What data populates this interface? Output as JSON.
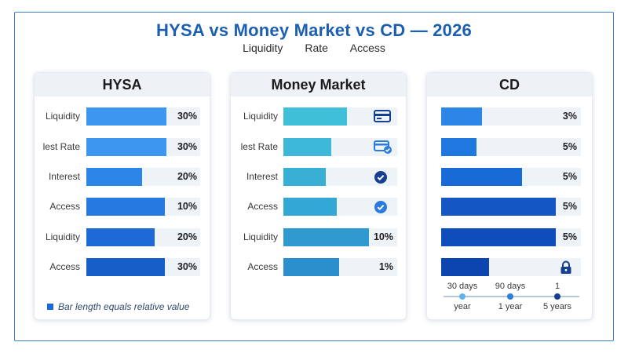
{
  "title": "HYSA vs Money Market vs CD — 2026",
  "subtitle": [
    "Liquidity",
    "Rate",
    "Access"
  ],
  "legend_text": "Bar length equals relative value",
  "colors": {
    "title": "#1c5fb0",
    "hysa": [
      "#3d97f0",
      "#3d97f0",
      "#2b86e8",
      "#2579e0",
      "#1d6ad6",
      "#175ec8"
    ],
    "money_market": [
      "#40c0d8",
      "#3db8d8",
      "#38b0d6",
      "#33a8d4",
      "#2e9ad0",
      "#2a8fcc"
    ],
    "cd": [
      "#2b86e8",
      "#1f78e0",
      "#186ad6",
      "#1356c4",
      "#0f4cbc",
      "#0d45b0"
    ]
  },
  "timeline": {
    "top_labels": [
      "30 days",
      "90 days",
      "1"
    ],
    "bottom_labels": [
      "year",
      "1 year",
      "5 years"
    ]
  },
  "chart_data": [
    {
      "type": "bar",
      "title": "HYSA",
      "categories": [
        "Liquidity",
        "lest Rate",
        "Interest",
        "Access",
        "Liquidity",
        "Access"
      ],
      "value_labels": [
        "30%",
        "30%",
        "20%",
        "10%",
        "20%",
        "30%"
      ],
      "bar_fraction": [
        0.7,
        0.7,
        0.49,
        0.69,
        0.6,
        0.69
      ],
      "icons": []
    },
    {
      "type": "bar",
      "title": "Money Market",
      "categories": [
        "Liquidity",
        "lest Rate",
        "Interest",
        "Access",
        "Liquidity",
        "Access"
      ],
      "value_labels": [
        "",
        "",
        "",
        "",
        "10%",
        "1%"
      ],
      "bar_fraction": [
        0.56,
        0.42,
        0.37,
        0.47,
        0.75,
        0.49
      ],
      "icons": [
        "card-icon",
        "card-check-icon",
        "check-circle-icon",
        "check-badge-icon",
        "",
        ""
      ]
    },
    {
      "type": "bar",
      "title": "CD",
      "categories": [
        "",
        "",
        "",
        "",
        "",
        ""
      ],
      "value_labels": [
        "3%",
        "5%",
        "5%",
        "5%",
        "5%",
        ""
      ],
      "bar_fraction": [
        0.29,
        0.25,
        0.58,
        0.82,
        0.82,
        0.34
      ],
      "icons": [
        "",
        "",
        "",
        "",
        "",
        "lock-icon"
      ]
    }
  ]
}
